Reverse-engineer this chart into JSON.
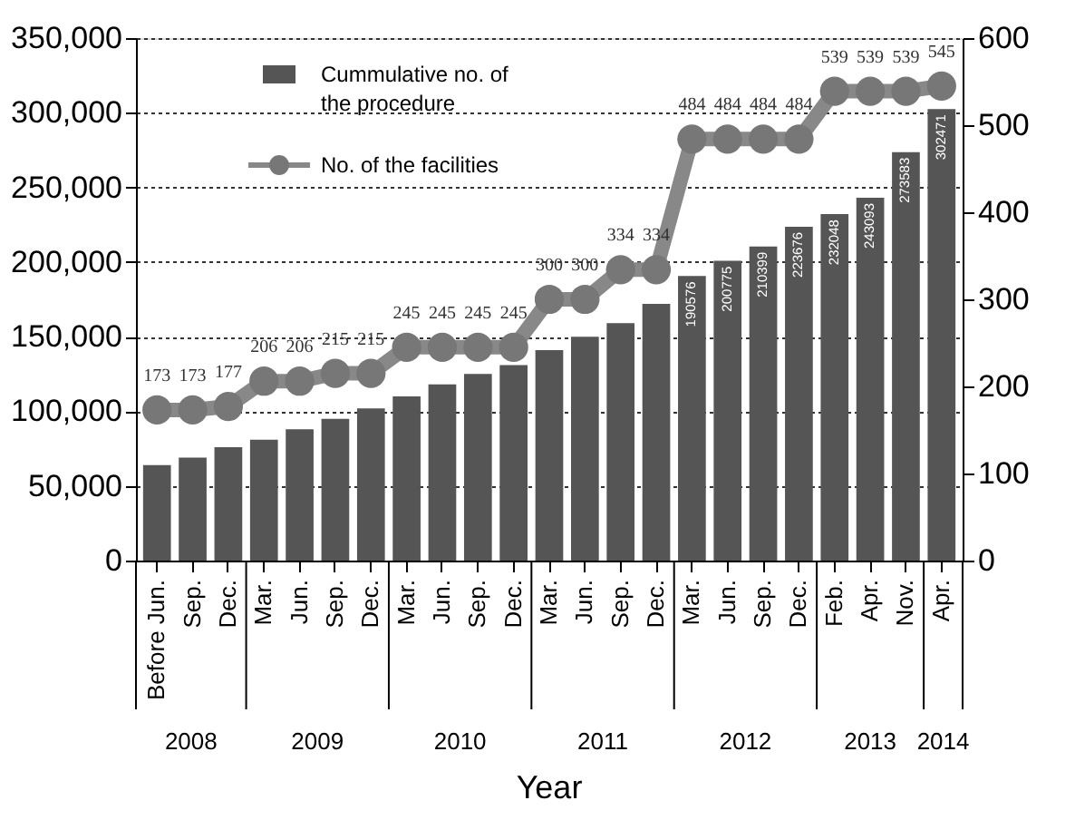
{
  "chart_data": {
    "type": "bar",
    "categories": [
      "Before Jun.",
      "Sep.",
      "Dec.",
      "Mar.",
      "Jun.",
      "Sep.",
      "Dec.",
      "Mar.",
      "Jun.",
      "Sep.",
      "Dec.",
      "Mar.",
      "Jun.",
      "Sep.",
      "Dec.",
      "Mar.",
      "Jun.",
      "Sep.",
      "Dec.",
      "Feb.",
      "Apr.",
      "Nov.",
      "Apr."
    ],
    "xlabel": "Year",
    "annotations": [
      "2008",
      "2009",
      "2010",
      "2011",
      "2012",
      "2013",
      "2014"
    ],
    "series": [
      {
        "name": "Cummulative no. of the procedure",
        "color": "#555555",
        "values": [
          64000,
          69000,
          76000,
          81000,
          88000,
          95000,
          102000,
          110000,
          118000,
          125000,
          131000,
          141000,
          150000,
          159000,
          172000,
          190576,
          200775,
          210399,
          223676,
          232048,
          243093,
          273583,
          302471
        ],
        "value_labels": [
          null,
          null,
          null,
          null,
          null,
          null,
          null,
          null,
          null,
          null,
          null,
          null,
          null,
          null,
          null,
          "190576",
          "200775",
          "210399",
          "223676",
          "232048",
          "243093",
          "273583",
          "302471"
        ]
      },
      {
        "name": "No. of the facilities",
        "type": "line",
        "axis": "y2",
        "color": "#888888",
        "marker": "circle",
        "values": [
          173,
          173,
          177,
          206,
          206,
          215,
          215,
          245,
          245,
          245,
          245,
          300,
          300,
          334,
          334,
          484,
          484,
          484,
          484,
          539,
          539,
          539,
          545
        ],
        "value_labels": [
          "173",
          "173",
          "177",
          "206",
          "206",
          "215",
          "215",
          "245",
          "245",
          "245",
          "245",
          "300",
          "300",
          "334",
          "334",
          "484",
          "484",
          "484",
          "484",
          "539",
          "539",
          "539",
          "545"
        ]
      }
    ],
    "ylim": [
      0,
      350000
    ],
    "yticks": [
      0,
      {
        "value": 50000,
        "label": "50,000"
      },
      {
        "value": 100000,
        "label": "100,000"
      },
      {
        "value": 150000,
        "label": "150,000"
      },
      {
        "value": 200000,
        "label": "200,000"
      },
      {
        "value": 250000,
        "label": "250,000"
      },
      {
        "value": 300000,
        "label": "300,000"
      },
      {
        "value": 350000,
        "label": "350,000"
      }
    ],
    "y2lim": [
      0,
      600
    ],
    "y2ticks": [
      0,
      100,
      200,
      300,
      400,
      500,
      600
    ],
    "grid": "y",
    "legend": "top left"
  }
}
